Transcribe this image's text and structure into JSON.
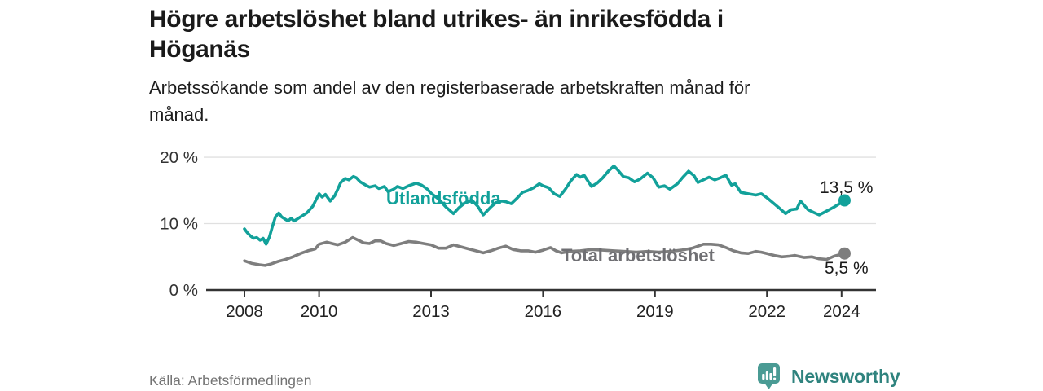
{
  "header": {
    "title_line1": "Högre arbetslöshet bland utrikes- än inrikesfödda i",
    "title_line2": "Höganäs",
    "subtitle_line1": "Arbetssökande som andel av den registerbaserade arbetskraften månad för",
    "subtitle_line2": "månad."
  },
  "footer": {
    "source": "Källa: Arbetsförmedlingen",
    "brand_name": "Newsworthy",
    "brand_icon": "bar-chart-speech-bubble"
  },
  "colors": {
    "accent_teal": "#12a19a",
    "line_gray": "#7e7e7e",
    "label_gray": "#6f6f73",
    "axis": "#333333",
    "axis_text": "#333333",
    "gridline": "#e0e0e0",
    "value_label": "#1a1a1a",
    "source_text": "#737373",
    "brand_teal": "#2f837e",
    "brand_mark_teal": "#4a9b94"
  },
  "chart_data": {
    "type": "line",
    "title": "Högre arbetslöshet bland utrikes- än inrikesfödda i Höganäs",
    "subtitle": "Arbetssökande som andel av den registerbaserade arbetskraften månad för månad.",
    "xlabel": "",
    "ylabel": "",
    "grid": "horizontal",
    "legend_position": "inline-on-line",
    "x_axis": {
      "ticks": [
        2008,
        2010,
        2013,
        2016,
        2019,
        2022,
        2024
      ],
      "range": [
        2008,
        2024.9
      ]
    },
    "y_axis": {
      "unit": "%",
      "range": [
        0,
        20
      ],
      "ticks": [
        {
          "label": "0 %",
          "value": 0
        },
        {
          "label": "10 %",
          "value": 10
        },
        {
          "label": "20 %",
          "value": 20
        }
      ]
    },
    "series": [
      {
        "name": "Utlandsfödda",
        "color": "#12a19a",
        "end_label": "13,5 %",
        "end_value": 13.5,
        "points": [
          [
            2008.0,
            9.2
          ],
          [
            2008.08,
            8.6
          ],
          [
            2008.17,
            8.1
          ],
          [
            2008.25,
            7.8
          ],
          [
            2008.33,
            7.9
          ],
          [
            2008.42,
            7.5
          ],
          [
            2008.5,
            7.8
          ],
          [
            2008.58,
            6.9
          ],
          [
            2008.67,
            8.0
          ],
          [
            2008.75,
            9.6
          ],
          [
            2008.83,
            11.0
          ],
          [
            2008.92,
            11.6
          ],
          [
            2009.0,
            11.0
          ],
          [
            2009.08,
            10.7
          ],
          [
            2009.17,
            10.4
          ],
          [
            2009.25,
            10.8
          ],
          [
            2009.33,
            10.4
          ],
          [
            2009.42,
            10.7
          ],
          [
            2009.5,
            11.0
          ],
          [
            2009.67,
            11.6
          ],
          [
            2009.83,
            12.6
          ],
          [
            2009.92,
            13.6
          ],
          [
            2010.0,
            14.5
          ],
          [
            2010.08,
            14.0
          ],
          [
            2010.17,
            14.4
          ],
          [
            2010.3,
            13.4
          ],
          [
            2010.42,
            14.2
          ],
          [
            2010.5,
            15.2
          ],
          [
            2010.58,
            16.2
          ],
          [
            2010.7,
            16.8
          ],
          [
            2010.8,
            16.6
          ],
          [
            2010.92,
            17.1
          ],
          [
            2011.0,
            16.9
          ],
          [
            2011.1,
            16.3
          ],
          [
            2011.25,
            15.8
          ],
          [
            2011.35,
            15.5
          ],
          [
            2011.5,
            15.7
          ],
          [
            2011.6,
            15.3
          ],
          [
            2011.75,
            15.6
          ],
          [
            2011.85,
            14.8
          ],
          [
            2012.0,
            15.2
          ],
          [
            2012.1,
            15.6
          ],
          [
            2012.25,
            15.3
          ],
          [
            2012.4,
            15.7
          ],
          [
            2012.6,
            16.1
          ],
          [
            2012.75,
            15.8
          ],
          [
            2012.9,
            15.2
          ],
          [
            2013.0,
            14.6
          ],
          [
            2013.2,
            13.7
          ],
          [
            2013.4,
            12.5
          ],
          [
            2013.6,
            11.5
          ],
          [
            2013.75,
            12.4
          ],
          [
            2013.9,
            13.1
          ],
          [
            2014.1,
            13.5
          ],
          [
            2014.25,
            12.6
          ],
          [
            2014.4,
            11.3
          ],
          [
            2014.6,
            12.5
          ],
          [
            2014.75,
            13.2
          ],
          [
            2014.9,
            13.4
          ],
          [
            2015.0,
            13.3
          ],
          [
            2015.15,
            13.0
          ],
          [
            2015.3,
            13.8
          ],
          [
            2015.45,
            14.7
          ],
          [
            2015.6,
            15.0
          ],
          [
            2015.75,
            15.4
          ],
          [
            2015.9,
            16.0
          ],
          [
            2016.0,
            15.7
          ],
          [
            2016.15,
            15.4
          ],
          [
            2016.3,
            14.5
          ],
          [
            2016.45,
            14.1
          ],
          [
            2016.6,
            15.2
          ],
          [
            2016.75,
            16.5
          ],
          [
            2016.9,
            17.4
          ],
          [
            2017.0,
            17.0
          ],
          [
            2017.1,
            17.3
          ],
          [
            2017.3,
            15.6
          ],
          [
            2017.45,
            16.1
          ],
          [
            2017.6,
            16.9
          ],
          [
            2017.75,
            17.9
          ],
          [
            2017.9,
            18.7
          ],
          [
            2018.0,
            18.1
          ],
          [
            2018.15,
            17.1
          ],
          [
            2018.3,
            16.9
          ],
          [
            2018.45,
            16.3
          ],
          [
            2018.6,
            16.7
          ],
          [
            2018.8,
            17.6
          ],
          [
            2018.95,
            16.9
          ],
          [
            2019.1,
            15.5
          ],
          [
            2019.25,
            15.7
          ],
          [
            2019.4,
            15.2
          ],
          [
            2019.6,
            16.0
          ],
          [
            2019.75,
            17.0
          ],
          [
            2019.9,
            17.9
          ],
          [
            2020.05,
            17.2
          ],
          [
            2020.15,
            16.2
          ],
          [
            2020.3,
            16.6
          ],
          [
            2020.45,
            17.0
          ],
          [
            2020.6,
            16.6
          ],
          [
            2020.75,
            16.9
          ],
          [
            2020.9,
            17.3
          ],
          [
            2021.05,
            15.8
          ],
          [
            2021.15,
            16.0
          ],
          [
            2021.3,
            14.7
          ],
          [
            2021.5,
            14.5
          ],
          [
            2021.7,
            14.3
          ],
          [
            2021.85,
            14.5
          ],
          [
            2022.0,
            13.9
          ],
          [
            2022.15,
            13.2
          ],
          [
            2022.3,
            12.5
          ],
          [
            2022.5,
            11.5
          ],
          [
            2022.65,
            12.1
          ],
          [
            2022.8,
            12.2
          ],
          [
            2022.9,
            13.4
          ],
          [
            2023.1,
            12.1
          ],
          [
            2023.25,
            11.7
          ],
          [
            2023.4,
            11.3
          ],
          [
            2023.6,
            11.9
          ],
          [
            2023.8,
            12.5
          ],
          [
            2024.0,
            13.2
          ],
          [
            2024.08,
            13.5
          ]
        ]
      },
      {
        "name": "Total arbetslöshet",
        "color": "#7e7e7e",
        "end_label": "5,5 %",
        "end_value": 5.5,
        "points": [
          [
            2008.0,
            4.4
          ],
          [
            2008.2,
            4.0
          ],
          [
            2008.4,
            3.8
          ],
          [
            2008.55,
            3.7
          ],
          [
            2008.7,
            3.9
          ],
          [
            2008.9,
            4.3
          ],
          [
            2009.1,
            4.6
          ],
          [
            2009.3,
            5.0
          ],
          [
            2009.5,
            5.5
          ],
          [
            2009.7,
            5.9
          ],
          [
            2009.9,
            6.2
          ],
          [
            2010.0,
            6.9
          ],
          [
            2010.2,
            7.2
          ],
          [
            2010.35,
            7.0
          ],
          [
            2010.5,
            6.8
          ],
          [
            2010.7,
            7.2
          ],
          [
            2010.9,
            7.9
          ],
          [
            2011.05,
            7.5
          ],
          [
            2011.2,
            7.1
          ],
          [
            2011.35,
            7.0
          ],
          [
            2011.5,
            7.4
          ],
          [
            2011.65,
            7.4
          ],
          [
            2011.8,
            7.0
          ],
          [
            2012.0,
            6.7
          ],
          [
            2012.2,
            7.0
          ],
          [
            2012.4,
            7.3
          ],
          [
            2012.6,
            7.2
          ],
          [
            2012.8,
            7.0
          ],
          [
            2013.0,
            6.8
          ],
          [
            2013.2,
            6.3
          ],
          [
            2013.4,
            6.3
          ],
          [
            2013.6,
            6.8
          ],
          [
            2013.8,
            6.5
          ],
          [
            2014.0,
            6.2
          ],
          [
            2014.2,
            5.9
          ],
          [
            2014.4,
            5.6
          ],
          [
            2014.6,
            5.9
          ],
          [
            2014.8,
            6.3
          ],
          [
            2015.0,
            6.6
          ],
          [
            2015.2,
            6.1
          ],
          [
            2015.4,
            5.9
          ],
          [
            2015.6,
            5.9
          ],
          [
            2015.8,
            5.7
          ],
          [
            2016.0,
            6.0
          ],
          [
            2016.2,
            6.4
          ],
          [
            2016.35,
            5.9
          ],
          [
            2016.5,
            5.6
          ],
          [
            2016.7,
            5.8
          ],
          [
            2017.0,
            5.9
          ],
          [
            2017.3,
            6.1
          ],
          [
            2017.6,
            6.0
          ],
          [
            2017.9,
            5.9
          ],
          [
            2018.2,
            5.8
          ],
          [
            2018.5,
            5.7
          ],
          [
            2018.8,
            5.8
          ],
          [
            2019.1,
            5.7
          ],
          [
            2019.4,
            5.8
          ],
          [
            2019.7,
            6.0
          ],
          [
            2020.0,
            6.3
          ],
          [
            2020.3,
            6.9
          ],
          [
            2020.5,
            6.9
          ],
          [
            2020.7,
            6.8
          ],
          [
            2020.9,
            6.4
          ],
          [
            2021.1,
            5.9
          ],
          [
            2021.3,
            5.6
          ],
          [
            2021.5,
            5.5
          ],
          [
            2021.7,
            5.8
          ],
          [
            2021.85,
            5.7
          ],
          [
            2022.0,
            5.5
          ],
          [
            2022.2,
            5.2
          ],
          [
            2022.4,
            5.0
          ],
          [
            2022.6,
            5.1
          ],
          [
            2022.75,
            5.2
          ],
          [
            2023.0,
            4.9
          ],
          [
            2023.2,
            5.0
          ],
          [
            2023.4,
            4.7
          ],
          [
            2023.6,
            4.6
          ],
          [
            2023.8,
            5.1
          ],
          [
            2024.0,
            5.4
          ],
          [
            2024.08,
            5.5
          ]
        ]
      }
    ]
  }
}
